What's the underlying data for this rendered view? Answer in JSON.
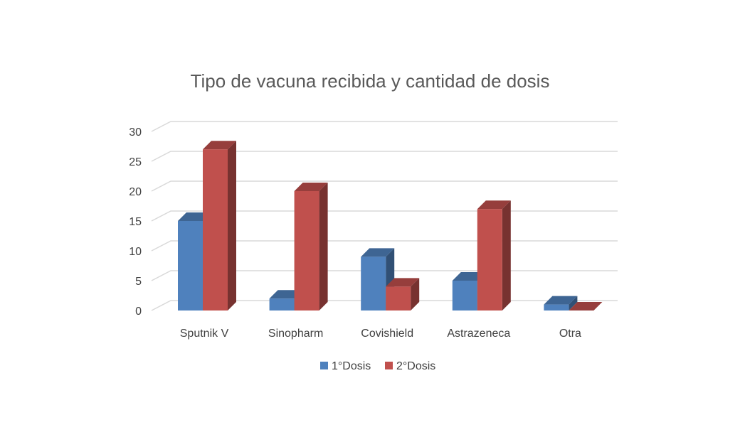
{
  "chart_data": {
    "type": "bar",
    "title": "Tipo de vacuna recibida y cantidad de dosis",
    "xlabel": "",
    "ylabel": "",
    "categories": [
      "Sputnik V",
      "Sinopharm",
      "Covishield",
      "Astrazeneca",
      "Otra"
    ],
    "series": [
      {
        "name": "1°Dosis",
        "values": [
          15,
          2,
          9,
          5,
          1
        ],
        "color": "#4F81BD"
      },
      {
        "name": "2°Dosis",
        "values": [
          27,
          20,
          4,
          17,
          0
        ],
        "color": "#C0504D"
      }
    ],
    "ylim": [
      0,
      30
    ],
    "yticks": [
      0,
      5,
      10,
      15,
      20,
      25,
      30
    ],
    "grid": true,
    "legend_position": "bottom",
    "style": "3d-clustered-column"
  }
}
